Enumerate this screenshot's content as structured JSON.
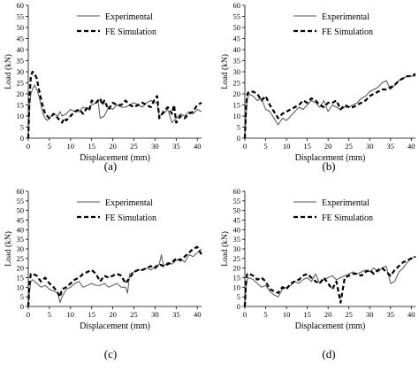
{
  "chart_data": [
    {
      "type": "line",
      "panel_label": "(a)",
      "xlabel": "Displacement (mm)",
      "ylabel": "Load (kN)",
      "xlim": [
        0,
        41
      ],
      "ylim": [
        0,
        60
      ],
      "xticks": [
        0,
        5,
        10,
        15,
        20,
        25,
        30,
        35,
        40
      ],
      "yticks": [
        0,
        5,
        10,
        15,
        20,
        25,
        30,
        35,
        40,
        45,
        50,
        55,
        60
      ],
      "grid": false,
      "legend": "top-center",
      "series": [
        {
          "name": "Experimental",
          "style": "solid",
          "x": [
            0,
            0.3,
            0.6,
            1,
            1.5,
            2,
            2.5,
            3,
            3.5,
            4,
            4.5,
            5,
            6,
            7,
            7.5,
            8,
            9,
            10,
            11,
            12,
            13,
            14,
            15,
            16,
            16.5,
            17,
            18,
            19,
            20,
            21,
            22,
            23,
            24,
            25,
            26,
            27,
            28,
            29,
            30,
            30.5,
            31,
            32,
            33,
            34,
            35,
            36,
            37,
            38,
            39,
            40,
            41
          ],
          "y": [
            0,
            14,
            20,
            22,
            24,
            22,
            19,
            15,
            11,
            9,
            8,
            9,
            11,
            10,
            12,
            10,
            11,
            13,
            12,
            12,
            14,
            13,
            15,
            16,
            17,
            9,
            10,
            14,
            13,
            15,
            14,
            14,
            15,
            16,
            15,
            14,
            16,
            17,
            16,
            16,
            10,
            11,
            13,
            7,
            9,
            11,
            10,
            12,
            11,
            13,
            12
          ]
        },
        {
          "name": "FE Simulation",
          "style": "dashed",
          "x": [
            0,
            0.3,
            0.6,
            1,
            1.5,
            2,
            2.5,
            3,
            3.5,
            4,
            4.5,
            5,
            5.5,
            6,
            7,
            8,
            8.5,
            9,
            10,
            11,
            12,
            13,
            14,
            14.5,
            15,
            16,
            17,
            17.5,
            18,
            19,
            20,
            21,
            22,
            23,
            24,
            25,
            26,
            27,
            28,
            29,
            30,
            30.5,
            31,
            32,
            33,
            34,
            34.5,
            35,
            36,
            37,
            38,
            39,
            40,
            41
          ],
          "y": [
            0,
            18,
            28,
            30,
            29,
            27,
            22,
            18,
            14,
            11,
            10,
            9,
            10,
            11,
            9,
            7,
            9,
            8,
            10,
            12,
            13,
            11,
            14,
            13,
            17,
            16,
            18,
            15,
            17,
            13,
            16,
            15,
            15,
            17,
            15,
            14,
            15,
            16,
            15,
            14,
            18,
            19,
            9,
            12,
            14,
            11,
            15,
            7,
            10,
            9,
            11,
            12,
            15,
            16
          ]
        }
      ]
    },
    {
      "type": "line",
      "panel_label": "(b)",
      "xlabel": "Displacement (mm)",
      "ylabel": "Load (kN)",
      "xlim": [
        0,
        41
      ],
      "ylim": [
        0,
        60
      ],
      "xticks": [
        0,
        5,
        10,
        15,
        20,
        25,
        30,
        35,
        40
      ],
      "yticks": [
        0,
        5,
        10,
        15,
        20,
        25,
        30,
        35,
        40,
        45,
        50,
        55,
        60
      ],
      "grid": false,
      "legend": "top-center",
      "series": [
        {
          "name": "Experimental",
          "style": "solid",
          "x": [
            0,
            0.3,
            0.6,
            1,
            2,
            3,
            4,
            5,
            6,
            7,
            8,
            9,
            10,
            11,
            12,
            13,
            14,
            15,
            16,
            17,
            18,
            19,
            20,
            21,
            22,
            23,
            24,
            25,
            26,
            27,
            28,
            29,
            30,
            31,
            32,
            33,
            34,
            35,
            36,
            37,
            38,
            39,
            40,
            41
          ],
          "y": [
            0,
            10,
            18,
            20,
            19,
            17,
            18,
            13,
            12,
            9,
            6,
            9,
            8,
            10,
            12,
            14,
            13,
            15,
            17,
            16,
            14,
            17,
            12,
            15,
            14,
            13,
            14,
            14,
            15,
            16,
            18,
            19,
            21,
            22,
            23,
            25,
            26,
            22,
            24,
            26,
            27,
            28,
            28,
            28
          ]
        },
        {
          "name": "FE Simulation",
          "style": "dashed",
          "x": [
            0,
            0.3,
            0.6,
            1,
            2,
            3,
            4,
            5,
            6,
            7,
            8,
            9,
            10,
            11,
            12,
            13,
            14,
            15,
            16,
            17,
            18,
            19,
            20,
            21,
            22,
            23,
            24,
            25,
            26,
            27,
            28,
            29,
            30,
            31,
            32,
            33,
            34,
            35,
            36,
            37,
            38,
            39,
            40,
            41
          ],
          "y": [
            0,
            14,
            20,
            21,
            21,
            20,
            17,
            19,
            15,
            12,
            9,
            11,
            12,
            13,
            14,
            15,
            17,
            16,
            18,
            17,
            15,
            14,
            16,
            16,
            17,
            13,
            15,
            14,
            14,
            15,
            16,
            17,
            19,
            20,
            21,
            22,
            22,
            23,
            24,
            26,
            27,
            28,
            28,
            29
          ]
        }
      ]
    },
    {
      "type": "line",
      "panel_label": "(c)",
      "xlabel": "Displacement (mm)",
      "ylabel": "Load (kN)",
      "xlim": [
        0,
        41
      ],
      "ylim": [
        0,
        60
      ],
      "xticks": [
        0,
        5,
        10,
        15,
        20,
        25,
        30,
        35,
        40
      ],
      "yticks": [
        0,
        5,
        10,
        15,
        20,
        25,
        30,
        35,
        40,
        45,
        50,
        55,
        60
      ],
      "grid": false,
      "legend": "top-center",
      "series": [
        {
          "name": "Experimental",
          "style": "solid",
          "x": [
            0,
            0.3,
            0.6,
            1,
            2,
            3,
            4,
            5,
            6,
            7,
            7.5,
            8,
            9,
            10,
            11,
            12,
            13,
            14,
            15,
            16,
            17,
            18,
            19,
            20,
            21,
            22,
            23,
            23.5,
            24,
            25,
            26,
            27,
            28,
            29,
            30,
            31,
            31.5,
            32,
            33,
            34,
            35,
            36,
            37,
            38,
            39,
            40,
            41
          ],
          "y": [
            0,
            8,
            13,
            14,
            12,
            10,
            11,
            9,
            8,
            7,
            2,
            5,
            9,
            10,
            12,
            13,
            10,
            11,
            12,
            11,
            11,
            12,
            10,
            11,
            12,
            10,
            10,
            7,
            17,
            18,
            19,
            19,
            20,
            19,
            21,
            22,
            27,
            21,
            23,
            22,
            24,
            25,
            23,
            27,
            26,
            28,
            30
          ]
        },
        {
          "name": "FE Simulation",
          "style": "dashed",
          "x": [
            0,
            0.3,
            0.6,
            1,
            2,
            3,
            4,
            5,
            6,
            7,
            7.5,
            8,
            9,
            10,
            11,
            12,
            13,
            14,
            15,
            16,
            17,
            18,
            19,
            20,
            21,
            22,
            23,
            24,
            25,
            26,
            27,
            28,
            29,
            30,
            31,
            32,
            33,
            34,
            35,
            36,
            37,
            38,
            39,
            40,
            41
          ],
          "y": [
            0,
            12,
            17,
            17,
            16,
            13,
            15,
            12,
            10,
            7,
            5,
            9,
            10,
            12,
            14,
            15,
            17,
            18,
            19,
            17,
            13,
            16,
            15,
            16,
            17,
            16,
            12,
            15,
            18,
            19,
            19,
            20,
            21,
            20,
            22,
            21,
            22,
            23,
            25,
            24,
            26,
            28,
            30,
            31,
            27
          ]
        }
      ]
    },
    {
      "type": "line",
      "panel_label": "(d)",
      "xlabel": "Displacement (mm)",
      "ylabel": "Load (kN)",
      "xlim": [
        0,
        41
      ],
      "ylim": [
        0,
        60
      ],
      "xticks": [
        0,
        5,
        10,
        15,
        20,
        25,
        30,
        35,
        40
      ],
      "yticks": [
        0,
        5,
        10,
        15,
        20,
        25,
        30,
        35,
        40,
        45,
        50,
        55,
        60
      ],
      "grid": false,
      "legend": "top-center",
      "series": [
        {
          "name": "Experimental",
          "style": "solid",
          "x": [
            0,
            0.3,
            0.6,
            1,
            2,
            3,
            4,
            5,
            6,
            7,
            8,
            9,
            10,
            11,
            12,
            13,
            14,
            15,
            16,
            17,
            18,
            19,
            20,
            21,
            22,
            23,
            24,
            25,
            26,
            27,
            28,
            29,
            30,
            31,
            32,
            33,
            34,
            35,
            36,
            37,
            38,
            39,
            40,
            41
          ],
          "y": [
            0,
            10,
            14,
            15,
            14,
            12,
            10,
            11,
            8,
            6,
            5,
            9,
            10,
            11,
            13,
            12,
            14,
            15,
            13,
            17,
            12,
            14,
            15,
            16,
            14,
            15,
            16,
            17,
            18,
            17,
            18,
            19,
            18,
            20,
            18,
            20,
            21,
            12,
            13,
            18,
            20,
            23,
            25,
            26
          ]
        },
        {
          "name": "FE Simulation",
          "style": "dashed",
          "x": [
            0,
            0.3,
            0.6,
            1,
            2,
            3,
            4,
            5,
            6,
            7,
            8,
            9,
            10,
            11,
            12,
            13,
            14,
            15,
            16,
            17,
            18,
            19,
            20,
            21,
            22,
            23,
            24,
            25,
            26,
            27,
            28,
            29,
            30,
            31,
            32,
            33,
            34,
            35,
            36,
            37,
            38,
            39,
            40,
            41
          ],
          "y": [
            0,
            14,
            17,
            17,
            16,
            14,
            15,
            13,
            9,
            8,
            7,
            10,
            9,
            12,
            13,
            14,
            16,
            17,
            15,
            13,
            12,
            15,
            12,
            9,
            13,
            2,
            15,
            16,
            17,
            17,
            16,
            18,
            19,
            17,
            19,
            20,
            18,
            16,
            19,
            21,
            23,
            24,
            25,
            26
          ]
        }
      ]
    }
  ]
}
